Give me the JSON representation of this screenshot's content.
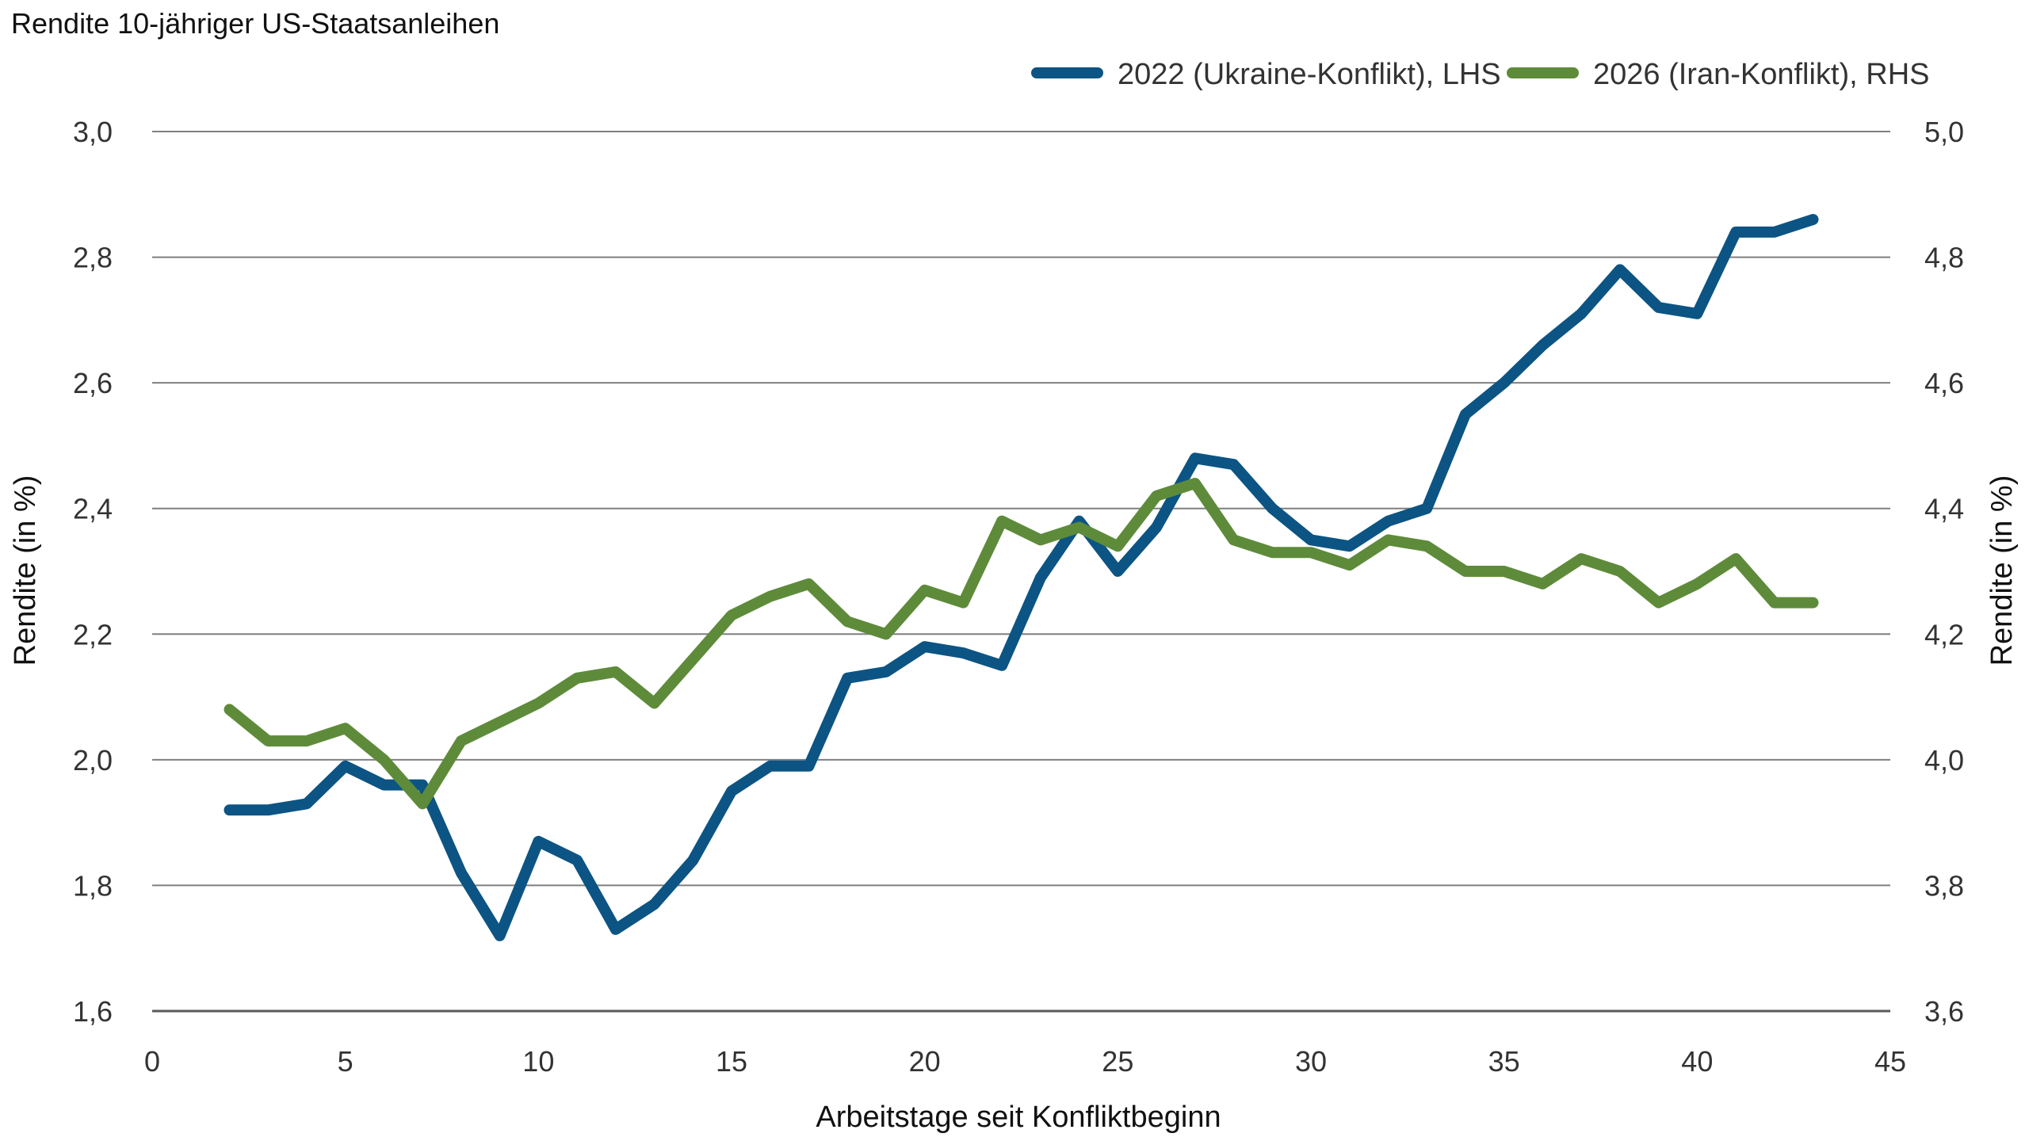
{
  "chart_data": {
    "type": "line",
    "title": "Rendite 10-jähriger US-Staatsanleihen",
    "xlabel": "Arbeitstage seit Konfliktbeginn",
    "ylabel_left": "Rendite (in %)",
    "ylabel_right": "Rendite (in %)",
    "xlim": [
      0,
      45
    ],
    "xticks": [
      0,
      5,
      10,
      15,
      20,
      25,
      30,
      35,
      40,
      45
    ],
    "ylim_left": [
      1.6,
      3.0
    ],
    "yticks_left": [
      "1,6",
      "1,8",
      "2,0",
      "2,2",
      "2,4",
      "2,6",
      "2,8",
      "3,0"
    ],
    "ylim_right": [
      3.6,
      5.0
    ],
    "yticks_right": [
      "3,6",
      "3,8",
      "4,0",
      "4,2",
      "4,4",
      "4,6",
      "4,8",
      "5,0"
    ],
    "grid": true,
    "legend_position": "top-right",
    "series": [
      {
        "name": "2022 (Ukraine-Konflikt), LHS",
        "axis": "left",
        "color": "#0c5483",
        "x": [
          2,
          3,
          4,
          5,
          6,
          7,
          8,
          9,
          10,
          11,
          12,
          13,
          14,
          15,
          16,
          17,
          18,
          19,
          20,
          21,
          22,
          23,
          24,
          25,
          26,
          27,
          28,
          29,
          30,
          31,
          32,
          33,
          34,
          35,
          36,
          37,
          38,
          39,
          40,
          41,
          42,
          43
        ],
        "values": [
          1.92,
          1.92,
          1.93,
          1.99,
          1.96,
          1.96,
          1.82,
          1.72,
          1.87,
          1.84,
          1.73,
          1.77,
          1.84,
          1.95,
          1.99,
          1.99,
          2.13,
          2.14,
          2.18,
          2.17,
          2.15,
          2.29,
          2.38,
          2.3,
          2.37,
          2.48,
          2.47,
          2.4,
          2.35,
          2.34,
          2.38,
          2.4,
          2.55,
          2.6,
          2.66,
          2.71,
          2.78,
          2.72,
          2.71,
          2.84,
          2.84,
          2.86
        ]
      },
      {
        "name": "2026 (Iran-Konflikt), RHS",
        "axis": "right",
        "color": "#5e8b3a",
        "x": [
          2,
          3,
          4,
          5,
          6,
          7,
          8,
          9,
          10,
          11,
          12,
          13,
          14,
          15,
          16,
          17,
          18,
          19,
          20,
          21,
          22,
          23,
          24,
          25,
          26,
          27,
          28,
          29,
          30,
          31,
          32,
          33,
          34,
          35,
          36,
          37,
          38,
          39,
          40,
          41,
          42,
          43
        ],
        "values": [
          4.08,
          4.03,
          4.03,
          4.05,
          4.0,
          3.93,
          4.03,
          4.06,
          4.09,
          4.13,
          4.14,
          4.09,
          4.16,
          4.23,
          4.26,
          4.28,
          4.22,
          4.2,
          4.27,
          4.25,
          4.38,
          4.35,
          4.37,
          4.34,
          4.42,
          4.44,
          4.35,
          4.33,
          4.33,
          4.31,
          4.35,
          4.34,
          4.3,
          4.3,
          4.28,
          4.32,
          4.3,
          4.25,
          4.28,
          4.32,
          4.25,
          4.25
        ]
      }
    ]
  }
}
